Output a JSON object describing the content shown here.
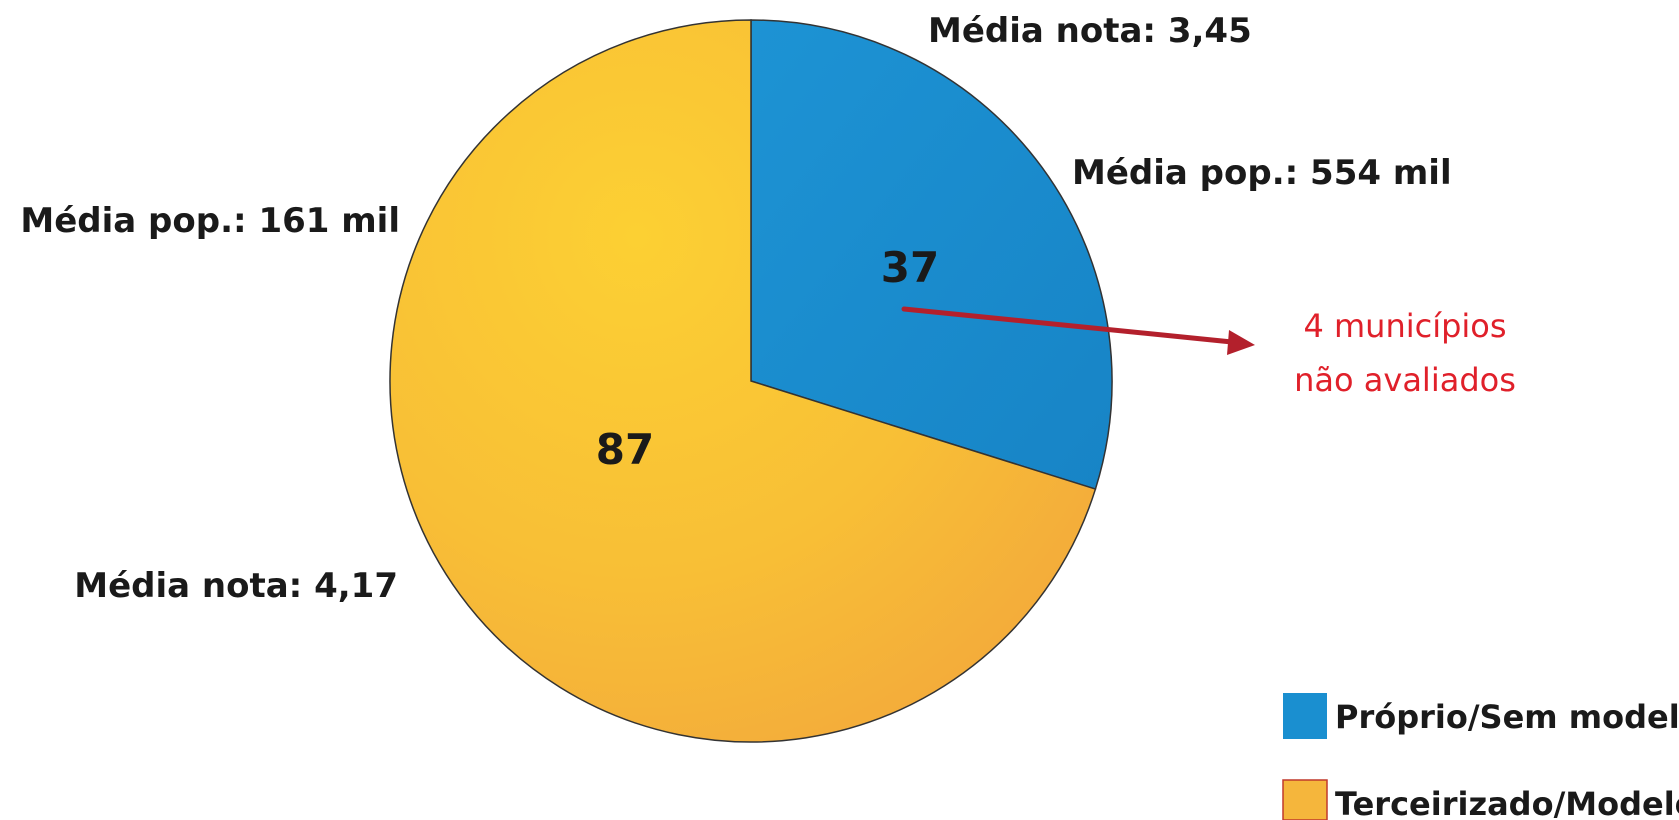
{
  "chart_data": {
    "type": "pie",
    "categories": [
      "Próprio/Sem modelo",
      "Terceirizado/Modelo"
    ],
    "values": [
      37,
      87
    ],
    "colors": {
      "blue": "#1a8fd0",
      "orange": "#f5b63c",
      "arrow": "#b3202c",
      "note": "#e0202a"
    },
    "annotations": {
      "blue_nota": "Média nota: 3,45",
      "blue_pop": "Média pop.: 554 mil",
      "orange_pop": "Média pop.: 161 mil",
      "orange_nota": "Média nota: 4,17"
    },
    "callout": {
      "line1": "4 municípios",
      "line2": "não avaliados"
    },
    "legend": {
      "position": "bottom-right",
      "items": [
        "Próprio/Sem modelo",
        "Terceirizado/Modelo"
      ]
    }
  }
}
